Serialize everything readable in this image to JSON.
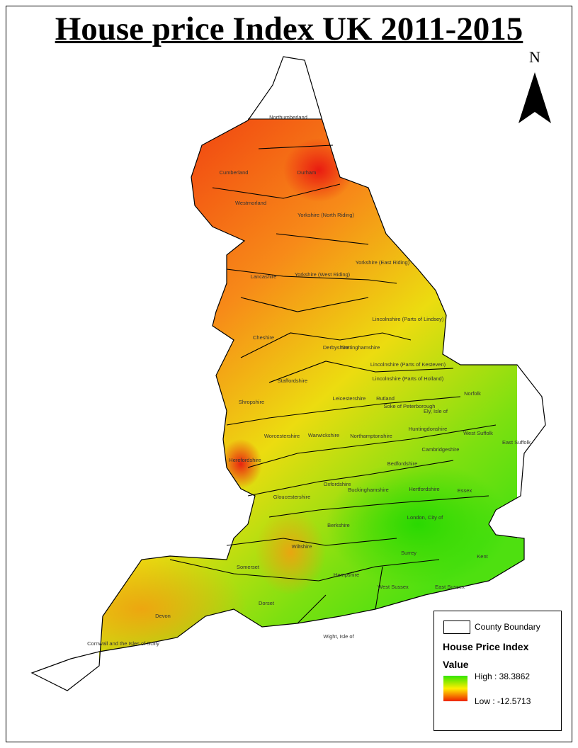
{
  "title": "House price Index UK 2011-2015",
  "north_label": "N",
  "legend": {
    "boundary_label": "County Boundary",
    "heading": "House Price Index",
    "subheading": "Value",
    "high": "High : 38.3862",
    "low": "Low : -12.5713",
    "colors": {
      "high": "#33e600",
      "mid": "#ffee00",
      "low": "#ee2200"
    }
  },
  "counties": [
    "Northumberland",
    "Cumberland",
    "Durham",
    "Westmorland",
    "Yorkshire (North Riding)",
    "Yorkshire (East Riding)",
    "Lancashire",
    "Yorkshire (West Riding)",
    "Lincolnshire (Parts of Lindsey)",
    "Cheshire",
    "Derbyshire",
    "Nottinghamshire",
    "Lincolnshire (Parts of Kesteven)",
    "Staffordshire",
    "Lincolnshire (Parts of Holland)",
    "Norfolk",
    "Shropshire",
    "Leicestershire",
    "Rutland",
    "Soke of Peterborough",
    "Ely, Isle of",
    "Huntingdonshire",
    "Worcestershire",
    "Warwickshire",
    "Northamptonshire",
    "West Suffolk",
    "East Suffolk",
    "Cambridgeshire",
    "Herefordshire",
    "Bedfordshire",
    "Oxfordshire",
    "Buckinghamshire",
    "Hertfordshire",
    "Essex",
    "Gloucestershire",
    "London, City of",
    "Berkshire",
    "Wiltshire",
    "Somerset",
    "Surrey",
    "Kent",
    "Hampshire",
    "West Sussex",
    "East Sussex",
    "Dorset",
    "Devon",
    "Wight, Isle of",
    "Cornwall and the Isles of Scilly"
  ]
}
